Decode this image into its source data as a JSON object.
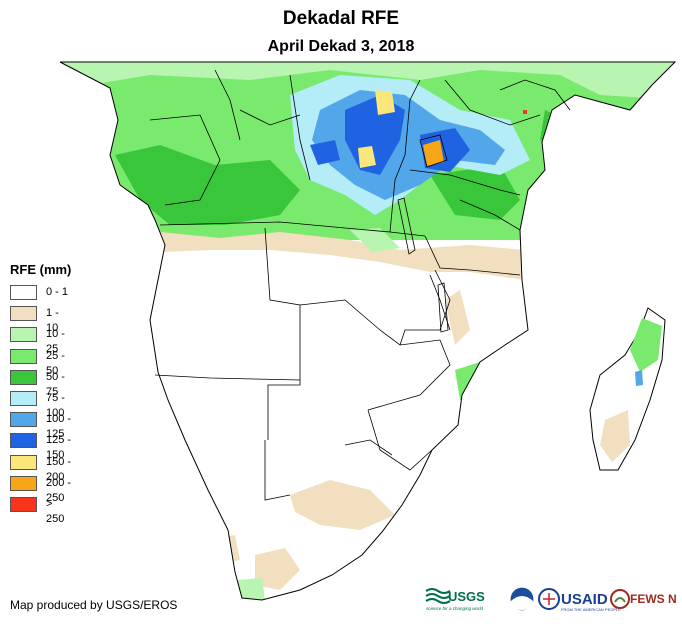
{
  "title": "Dekadal RFE",
  "subtitle": "April Dekad 3, 2018",
  "legend": {
    "title": "RFE (mm)",
    "classes": [
      {
        "label": "0 - 1",
        "color": "#ffffff"
      },
      {
        "label": "1 - 10",
        "color": "#f2dfbf"
      },
      {
        "label": "10 - 25",
        "color": "#b7f5b1"
      },
      {
        "label": "25 - 50",
        "color": "#7aea6e"
      },
      {
        "label": "50 - 75",
        "color": "#39c63b"
      },
      {
        "label": "75 - 100",
        "color": "#b4ecf7"
      },
      {
        "label": "100 - 125",
        "color": "#52a6ea"
      },
      {
        "label": "125 - 150",
        "color": "#1f63e2"
      },
      {
        "label": "150 - 200",
        "color": "#fbe67c"
      },
      {
        "label": "200 - 250",
        "color": "#f7a615"
      },
      {
        "label": "> 250",
        "color": "#f7341c"
      }
    ]
  },
  "credit": "Map produced by USGS/EROS",
  "logos": {
    "usgs": "USGS",
    "usgs_tagline": "science for a changing world",
    "usaid": "USAID",
    "usaid_tagline": "FROM THE AMERICAN PEOPLE",
    "fewsnet": "FEWS NET"
  }
}
